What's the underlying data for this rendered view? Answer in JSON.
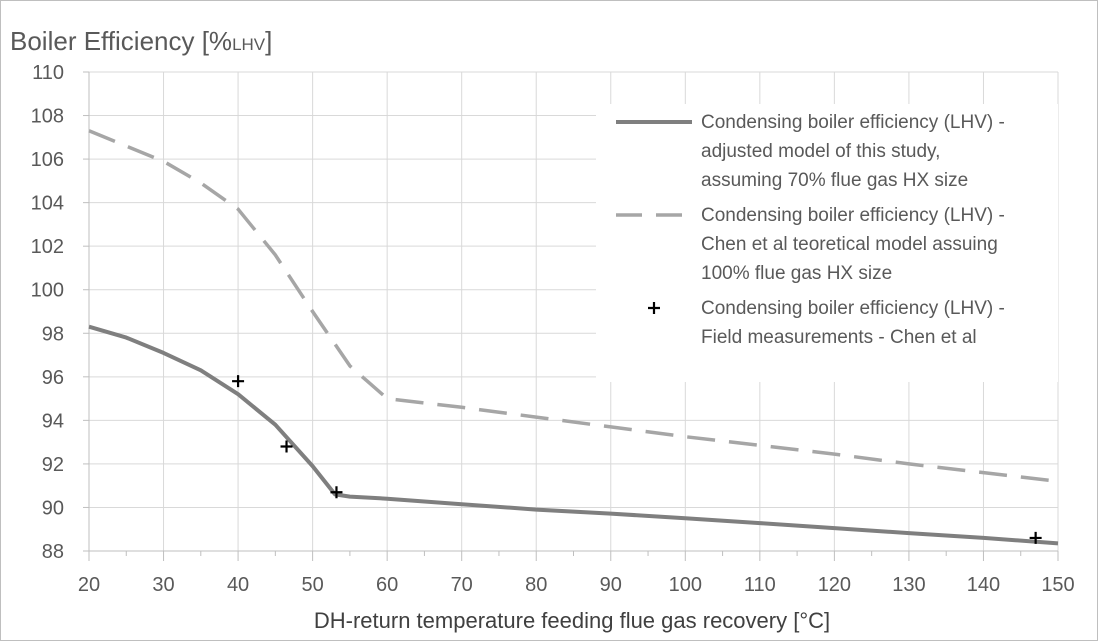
{
  "chart_data": {
    "type": "line",
    "ylabel_main": "Boiler Efficiency [%",
    "ylabel_sub": "LHV",
    "ylabel_end": "]",
    "xlabel": "DH-return temperature feeding flue gas recovery [°C]",
    "xlim": [
      20,
      150
    ],
    "ylim": [
      88,
      110
    ],
    "x_ticks": [
      "20",
      "30",
      "40",
      "50",
      "60",
      "70",
      "80",
      "90",
      "100",
      "110",
      "120",
      "130",
      "140",
      "150"
    ],
    "y_ticks": [
      "88",
      "90",
      "92",
      "94",
      "96",
      "98",
      "100",
      "102",
      "104",
      "106",
      "108",
      "110"
    ],
    "grid": true,
    "legend_position": "right",
    "series": [
      {
        "name": "Condensing boiler efficiency (LHV) -\nadjusted model of this study,\nassuming 70% flue gas HX size",
        "style": "solid",
        "color": "#7f7f7f",
        "x": [
          20,
          25,
          30,
          35,
          40,
          45,
          50,
          53,
          55,
          60,
          70,
          80,
          90,
          100,
          110,
          120,
          130,
          140,
          150
        ],
        "y": [
          98.3,
          97.8,
          97.1,
          96.3,
          95.2,
          93.8,
          91.9,
          90.6,
          90.5,
          90.4,
          90.15,
          89.9,
          89.72,
          89.5,
          89.28,
          89.05,
          88.82,
          88.6,
          88.35
        ]
      },
      {
        "name": "Condensing boiler efficiency (LHV) -\nChen et al teoretical model assuing\n100% flue gas HX size",
        "style": "dashed",
        "color": "#a6a6a6",
        "x": [
          20,
          30,
          35,
          40,
          45,
          50,
          55,
          60,
          70,
          80,
          90,
          100,
          110,
          120,
          130,
          140,
          150
        ],
        "y": [
          107.3,
          105.9,
          104.9,
          103.7,
          101.6,
          99.0,
          96.5,
          95.0,
          94.6,
          94.15,
          93.7,
          93.25,
          92.85,
          92.45,
          92.0,
          91.6,
          91.2
        ]
      },
      {
        "name": "Condensing boiler efficiency (LHV) -\nField measurements - Chen et al",
        "style": "markers",
        "color": "#000000",
        "x": [
          40,
          46.5,
          53.2,
          147
        ],
        "y": [
          95.8,
          92.8,
          90.7,
          88.6
        ]
      }
    ]
  }
}
